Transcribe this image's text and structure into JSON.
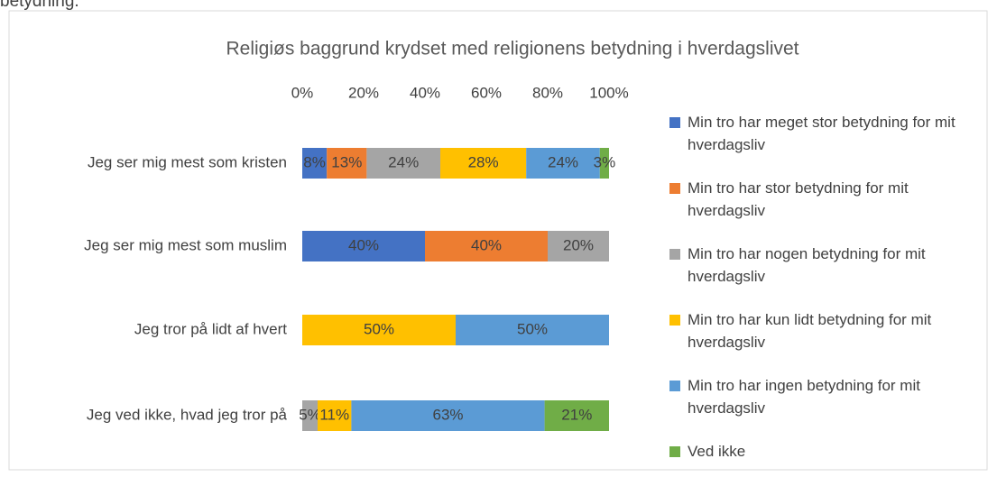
{
  "caption": "betydning.",
  "chart_data": {
    "type": "stacked-bar-horizontal",
    "title": "Religiøs baggrund krydset med religionens betydning i hverdagslivet",
    "categories": [
      "Jeg ser mig mest som kristen",
      "Jeg ser mig mest som muslim",
      "Jeg tror på lidt af hvert",
      "Jeg ved ikke, hvad jeg tror på"
    ],
    "series": [
      {
        "name": "Min tro har meget stor betydning for mit hverdagsliv",
        "color": "#4472c4",
        "values": [
          8,
          40,
          null,
          null
        ],
        "value_labels": [
          "8%",
          "40%",
          null,
          null
        ]
      },
      {
        "name": "Min tro har stor betydning for mit hverdagsliv",
        "color": "#ed7d31",
        "values": [
          13,
          40,
          null,
          null
        ],
        "value_labels": [
          "13%",
          "40%",
          null,
          null
        ]
      },
      {
        "name": "Min tro har nogen betydning for mit hverdagsliv",
        "color": "#a5a5a5",
        "values": [
          24,
          20,
          null,
          5
        ],
        "value_labels": [
          "24%",
          "20%",
          null,
          "5%"
        ]
      },
      {
        "name": "Min tro har kun lidt betydning for mit hverdagsliv",
        "color": "#ffc000",
        "values": [
          28,
          null,
          50,
          11
        ],
        "value_labels": [
          "28%",
          null,
          "50%",
          "11%"
        ]
      },
      {
        "name": "Min tro har ingen betydning for mit hverdagsliv",
        "color": "#5b9bd5",
        "values": [
          24,
          null,
          50,
          63
        ],
        "value_labels": [
          "24%",
          null,
          "50%",
          "63%"
        ]
      },
      {
        "name": "Ved ikke",
        "color": "#70ad47",
        "values": [
          3,
          null,
          null,
          21
        ],
        "value_labels": [
          "3%",
          null,
          null,
          "21%"
        ]
      }
    ],
    "xlim": [
      0,
      100
    ],
    "xticks": [
      {
        "value": 0,
        "label": "0%"
      },
      {
        "value": 20,
        "label": "20%"
      },
      {
        "value": 40,
        "label": "40%"
      },
      {
        "value": 60,
        "label": "60%"
      },
      {
        "value": 80,
        "label": "80%"
      },
      {
        "value": 100,
        "label": "100%"
      }
    ],
    "legend": "right"
  }
}
